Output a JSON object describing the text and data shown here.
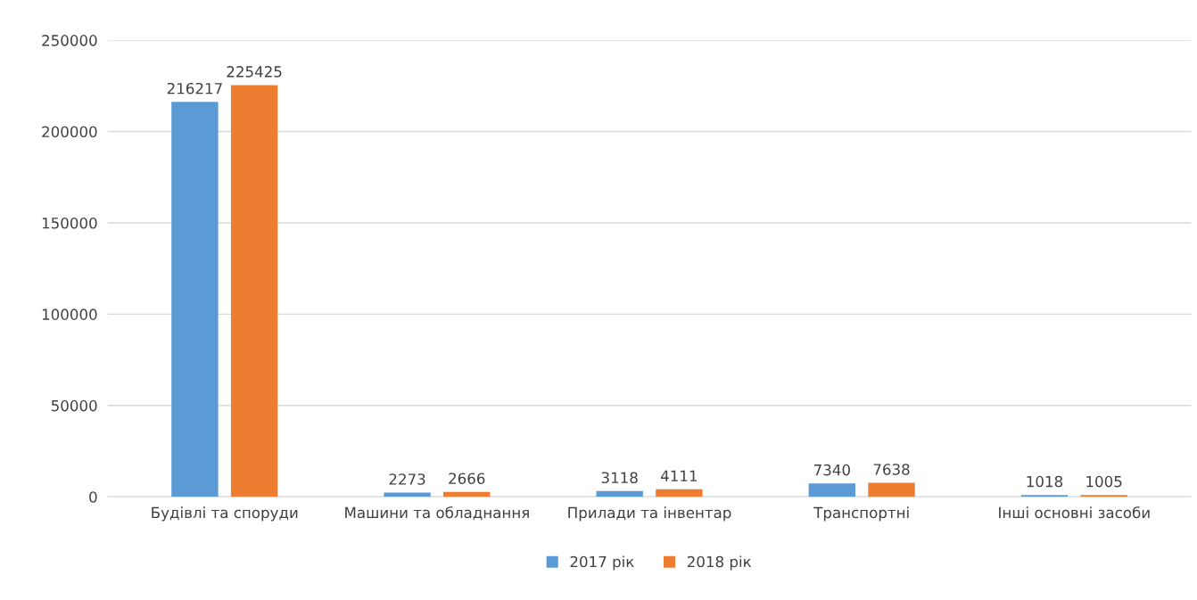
{
  "chart_data": {
    "type": "bar",
    "categories": [
      "Будівлі та споруди",
      "Машини та обладнання",
      "Прилади та інвентар",
      "Транспортні",
      "Інші основні засоби"
    ],
    "series": [
      {
        "name": "2017 рік",
        "color": "#5b9bd5",
        "values": [
          216217,
          2273,
          3118,
          7340,
          1018
        ]
      },
      {
        "name": "2018 рік",
        "color": "#ed7d31",
        "values": [
          225425,
          2666,
          4111,
          7638,
          1005
        ]
      }
    ],
    "ylim": [
      0,
      250000
    ],
    "yticks": [
      0,
      50000,
      100000,
      150000,
      200000,
      250000
    ],
    "grid": "y",
    "legend": "bottom",
    "data_labels": true
  }
}
